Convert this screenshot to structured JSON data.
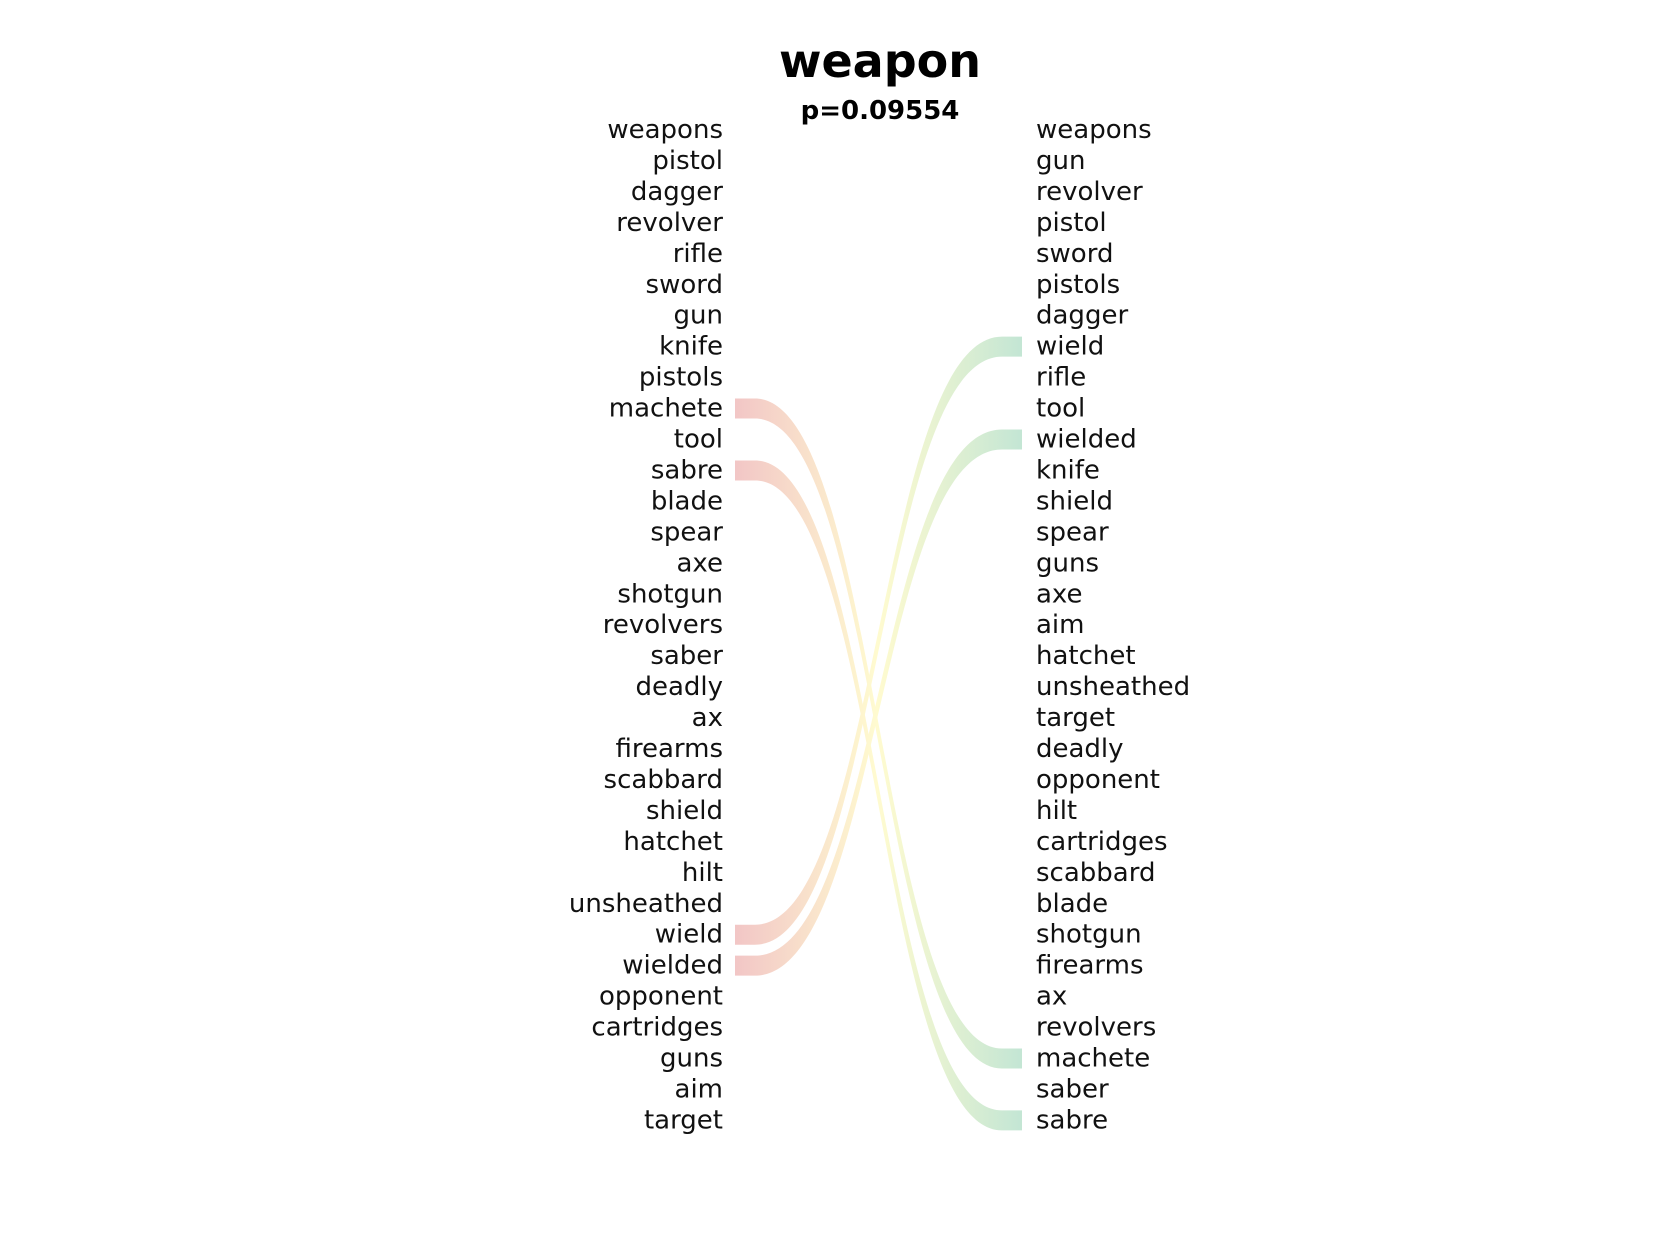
{
  "figure": {
    "title": "weapon",
    "subtitle": "p=0.09554"
  },
  "left_words": [
    "weapons",
    "pistol",
    "dagger",
    "revolver",
    "rifle",
    "sword",
    "gun",
    "knife",
    "pistols",
    "machete",
    "tool",
    "sabre",
    "blade",
    "spear",
    "axe",
    "shotgun",
    "revolvers",
    "saber",
    "deadly",
    "ax",
    "firearms",
    "scabbard",
    "shield",
    "hatchet",
    "hilt",
    "unsheathed",
    "wield",
    "wielded",
    "opponent",
    "cartridges",
    "guns",
    "aim",
    "target"
  ],
  "right_words": [
    "weapons",
    "gun",
    "revolver",
    "pistol",
    "sword",
    "pistols",
    "dagger",
    "wield",
    "rifle",
    "tool",
    "wielded",
    "knife",
    "shield",
    "spear",
    "guns",
    "axe",
    "aim",
    "hatchet",
    "unsheathed",
    "target",
    "deadly",
    "opponent",
    "hilt",
    "cartridges",
    "scabbard",
    "blade",
    "shotgun",
    "firearms",
    "ax",
    "revolvers",
    "machete",
    "saber",
    "sabre"
  ],
  "links": [
    {
      "word": "machete",
      "left_rank": 10,
      "right_rank": 31
    },
    {
      "word": "sabre",
      "left_rank": 12,
      "right_rank": 33
    },
    {
      "word": "wield",
      "left_rank": 27,
      "right_rank": 8
    },
    {
      "word": "wielded",
      "left_rank": 28,
      "right_rank": 11
    }
  ],
  "colors": {
    "left_end": "#f2c6c6",
    "middle": "#fffbd0",
    "right_end": "#c4e6d4"
  }
}
